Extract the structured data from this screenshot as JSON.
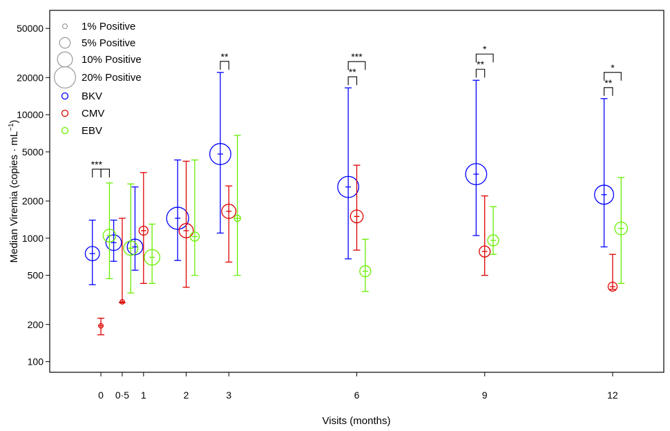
{
  "chart_data": {
    "type": "scatter",
    "title": "",
    "xlabel": "Visits (months)",
    "ylabel": "Median Viremia (copies · mL",
    "ylabel_sup": "−1",
    "ylabel_close": ")",
    "yscale": "log",
    "ylim": [
      82,
      70000
    ],
    "xlim": [
      -1.2,
      13.2
    ],
    "y_ticks": [
      100,
      200,
      500,
      1000,
      2000,
      5000,
      10000,
      20000,
      50000
    ],
    "y_tick_labels": [
      "100",
      "200",
      "500",
      "1000",
      "2000",
      "5000",
      "10000",
      "20000",
      "50000"
    ],
    "x_ticks": [
      0,
      0.5,
      1,
      2,
      3,
      6,
      9,
      12
    ],
    "x_tick_labels": [
      "0",
      "0·5",
      "1",
      "2",
      "3",
      "6",
      "9",
      "12"
    ],
    "legend": {
      "position": "top-left",
      "size_entries": [
        {
          "label": "1% Positive",
          "percent": 1
        },
        {
          "label": "5% Positive",
          "percent": 5
        },
        {
          "label": "10% Positive",
          "percent": 10
        },
        {
          "label": "20% Positive",
          "percent": 20
        }
      ],
      "series_entries": [
        {
          "label": "BKV",
          "color": "#0000ff"
        },
        {
          "label": "CMV",
          "color": "#dd0000"
        },
        {
          "label": "EBV",
          "color": "#66ee00"
        }
      ]
    },
    "series": [
      {
        "name": "BKV",
        "color": "#0000ff",
        "offset": -0.2,
        "points": [
          {
            "x": 0,
            "median": 750,
            "lower": 420,
            "upper": 1400,
            "percent_positive": 5
          },
          {
            "x": 0.5,
            "median": 920,
            "lower": 650,
            "upper": 1400,
            "percent_positive": 6
          },
          {
            "x": 1,
            "median": 850,
            "lower": 550,
            "upper": 2600,
            "percent_positive": 6
          },
          {
            "x": 2,
            "median": 1450,
            "lower": 660,
            "upper": 4300,
            "percent_positive": 12
          },
          {
            "x": 3,
            "median": 4800,
            "lower": 1100,
            "upper": 22000,
            "percent_positive": 11
          },
          {
            "x": 6,
            "median": 2600,
            "lower": 680,
            "upper": 16500,
            "percent_positive": 11
          },
          {
            "x": 9,
            "median": 3300,
            "lower": 1050,
            "upper": 19000,
            "percent_positive": 11
          },
          {
            "x": 12,
            "median": 2250,
            "lower": 850,
            "upper": 13500,
            "percent_positive": 9
          }
        ]
      },
      {
        "name": "CMV",
        "color": "#dd0000",
        "offset": 0,
        "points": [
          {
            "x": 0,
            "median": 195,
            "lower": 165,
            "upper": 225,
            "percent_positive": 0.5
          },
          {
            "x": 0.5,
            "median": 305,
            "lower": 300,
            "upper": 1450,
            "percent_positive": 0.5
          },
          {
            "x": 1,
            "median": 1150,
            "lower": 430,
            "upper": 3400,
            "percent_positive": 2
          },
          {
            "x": 2,
            "median": 1150,
            "lower": 400,
            "upper": 4200,
            "percent_positive": 5
          },
          {
            "x": 3,
            "median": 1650,
            "lower": 640,
            "upper": 2650,
            "percent_positive": 5
          },
          {
            "x": 6,
            "median": 1500,
            "lower": 800,
            "upper": 3900,
            "percent_positive": 4
          },
          {
            "x": 9,
            "median": 780,
            "lower": 500,
            "upper": 2200,
            "percent_positive": 3
          },
          {
            "x": 12,
            "median": 405,
            "lower": 385,
            "upper": 740,
            "percent_positive": 2
          }
        ]
      },
      {
        "name": "EBV",
        "color": "#66ee00",
        "offset": 0.2,
        "points": [
          {
            "x": 0,
            "median": 1050,
            "lower": 470,
            "upper": 2800,
            "percent_positive": 4
          },
          {
            "x": 0.5,
            "median": 830,
            "lower": 360,
            "upper": 2750,
            "percent_positive": 5
          },
          {
            "x": 1,
            "median": 700,
            "lower": 430,
            "upper": 1300,
            "percent_positive": 6
          },
          {
            "x": 2,
            "median": 1030,
            "lower": 500,
            "upper": 4300,
            "percent_positive": 2
          },
          {
            "x": 3,
            "median": 1450,
            "lower": 500,
            "upper": 6800,
            "percent_positive": 1
          },
          {
            "x": 6,
            "median": 540,
            "lower": 370,
            "upper": 980,
            "percent_positive": 3
          },
          {
            "x": 9,
            "median": 960,
            "lower": 740,
            "upper": 1800,
            "percent_positive": 3
          },
          {
            "x": 12,
            "median": 1200,
            "lower": 430,
            "upper": 3100,
            "percent_positive": 4
          }
        ]
      }
    ],
    "significance": [
      {
        "x": 0,
        "pair": [
          "BKV",
          "CMV"
        ],
        "label": "***",
        "level": 0
      },
      {
        "x": 0,
        "pair": [
          "CMV",
          "EBV"
        ],
        "label": "",
        "level": 0
      },
      {
        "x": 3,
        "pair": [
          "BKV",
          "CMV"
        ],
        "label": "**",
        "level": 0
      },
      {
        "x": 6,
        "pair": [
          "BKV",
          "CMV"
        ],
        "label": "**",
        "level": 0
      },
      {
        "x": 6,
        "pair": [
          "BKV",
          "EBV"
        ],
        "label": "***",
        "level": 1
      },
      {
        "x": 9,
        "pair": [
          "BKV",
          "CMV"
        ],
        "label": "**",
        "level": 0
      },
      {
        "x": 9,
        "pair": [
          "BKV",
          "EBV"
        ],
        "label": "*",
        "level": 1
      },
      {
        "x": 12,
        "pair": [
          "BKV",
          "CMV"
        ],
        "label": "**",
        "level": 0
      },
      {
        "x": 12,
        "pair": [
          "BKV",
          "EBV"
        ],
        "label": "*",
        "level": 1
      }
    ]
  }
}
